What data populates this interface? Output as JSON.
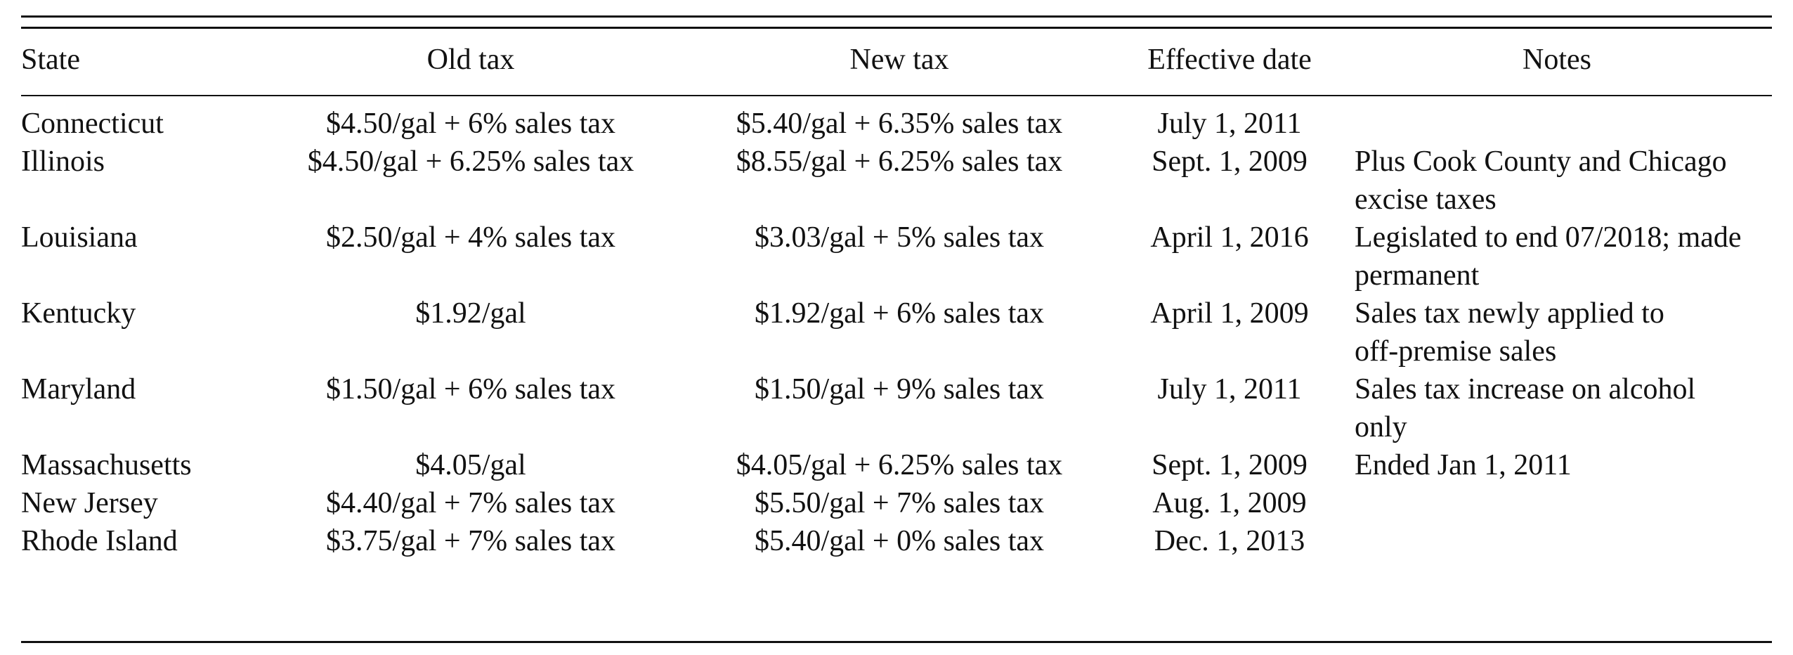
{
  "table": {
    "headers": {
      "state": "State",
      "old_tax": "Old tax",
      "new_tax": "New tax",
      "effective_date": "Effective date",
      "notes": "Notes"
    },
    "rows": [
      {
        "state": "Connecticut",
        "old_tax": "$4.50/gal + 6% sales tax",
        "new_tax": "$5.40/gal + 6.35% sales tax",
        "effective_date": "July 1, 2011",
        "notes_line1": "",
        "notes_line2": ""
      },
      {
        "state": "Illinois",
        "old_tax": "$4.50/gal + 6.25% sales tax",
        "new_tax": "$8.55/gal + 6.25% sales tax",
        "effective_date": "Sept. 1, 2009",
        "notes_line1": "Plus Cook County and Chicago",
        "notes_line2": "excise taxes"
      },
      {
        "state": "Louisiana",
        "old_tax": "$2.50/gal + 4% sales tax",
        "new_tax": "$3.03/gal + 5% sales tax",
        "effective_date": "April 1, 2016",
        "notes_line1": "Legislated to end 07/2018; made",
        "notes_line2": "permanent"
      },
      {
        "state": "Kentucky",
        "old_tax": "$1.92/gal",
        "new_tax": "$1.92/gal + 6% sales tax",
        "effective_date": "April 1, 2009",
        "notes_line1": "Sales tax newly applied to",
        "notes_line2": "off-premise sales"
      },
      {
        "state": "Maryland",
        "old_tax": "$1.50/gal + 6% sales tax",
        "new_tax": "$1.50/gal + 9% sales tax",
        "effective_date": "July 1, 2011",
        "notes_line1": "Sales tax increase on alcohol",
        "notes_line2": "only"
      },
      {
        "state": "Massachusetts",
        "old_tax": "$4.05/gal",
        "new_tax": "$4.05/gal + 6.25% sales tax",
        "effective_date": "Sept. 1, 2009",
        "notes_line1": "Ended Jan 1, 2011",
        "notes_line2": ""
      },
      {
        "state": "New Jersey",
        "old_tax": "$4.40/gal + 7% sales tax",
        "new_tax": "$5.50/gal + 7% sales tax",
        "effective_date": "Aug. 1, 2009",
        "notes_line1": "",
        "notes_line2": ""
      },
      {
        "state": "Rhode Island",
        "old_tax": "$3.75/gal + 7% sales tax",
        "new_tax": "$5.40/gal + 0% sales tax",
        "effective_date": "Dec. 1, 2013",
        "notes_line1": "",
        "notes_line2": ""
      }
    ]
  }
}
